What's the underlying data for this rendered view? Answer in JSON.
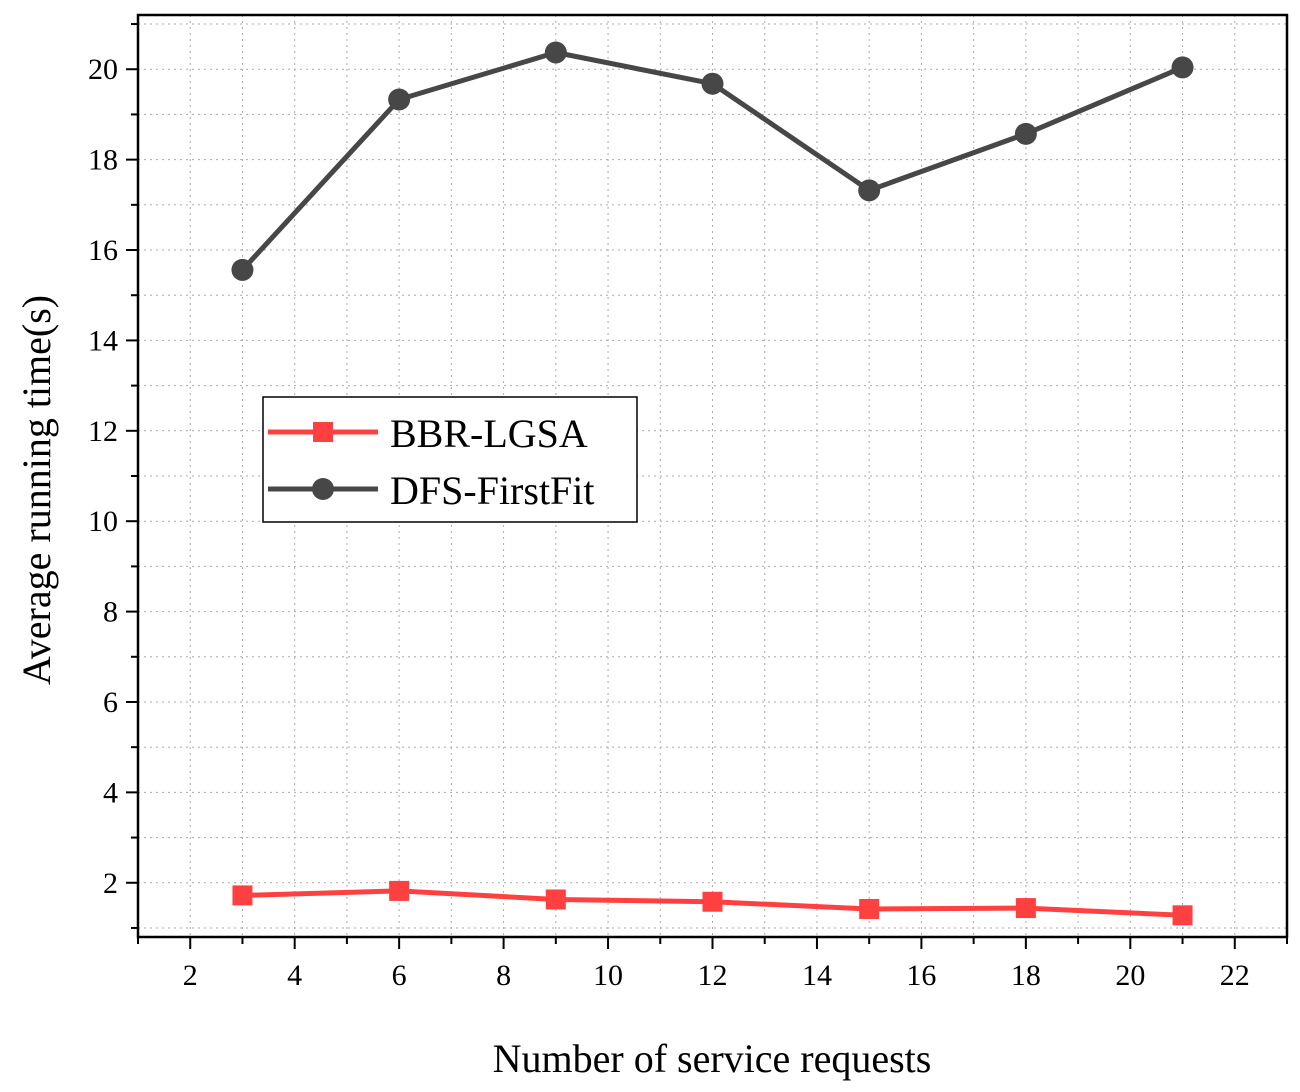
{
  "chart_data": {
    "type": "line",
    "title": "",
    "xlabel": "Number of service requests",
    "ylabel": "Average running time(s)",
    "xlim": [
      1,
      23
    ],
    "ylim": [
      0.8,
      21.2
    ],
    "xticks": [
      2,
      4,
      6,
      8,
      10,
      12,
      14,
      16,
      18,
      20,
      22
    ],
    "yticks": [
      2,
      4,
      6,
      8,
      10,
      12,
      14,
      16,
      18,
      20
    ],
    "grid": true,
    "legend_position": "middle-left",
    "x": [
      3,
      6,
      9,
      12,
      15,
      18,
      21
    ],
    "series": [
      {
        "name": "BBR-LGSA",
        "marker": "square",
        "color": "#ff4040",
        "values": [
          1.72,
          1.82,
          1.63,
          1.58,
          1.42,
          1.44,
          1.28
        ]
      },
      {
        "name": "DFS-FirstFit",
        "marker": "circle",
        "color": "#474747",
        "values": [
          15.56,
          19.33,
          20.37,
          19.68,
          17.32,
          18.57,
          20.04
        ]
      }
    ]
  }
}
